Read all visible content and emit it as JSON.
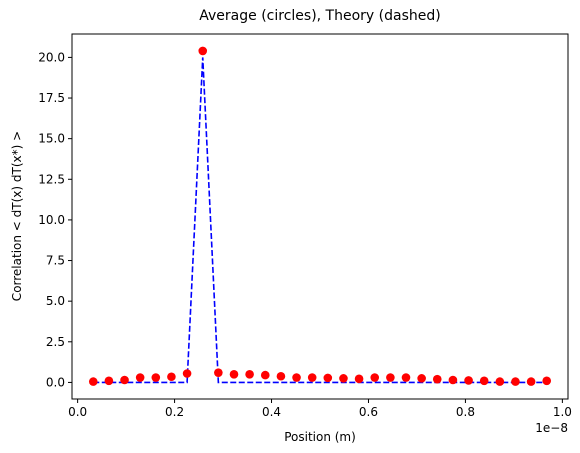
{
  "chart_data": {
    "type": "scatter",
    "title": "Average (circles), Theory (dashed)",
    "xlabel": "Position (m)",
    "ylabel": "Correlation < dT(x) dT(x*) >",
    "x_offset_text": "1e−8",
    "x_scale_exponent": -8,
    "xlim": [
      -0.0116,
      1.0116
    ],
    "ylim": [
      -1.02,
      21.44
    ],
    "x_ticks": [
      0.0,
      0.2,
      0.4,
      0.6,
      0.8,
      1.0
    ],
    "x_tick_labels": [
      "0.0",
      "0.2",
      "0.4",
      "0.6",
      "0.8",
      "1.0"
    ],
    "y_ticks": [
      0.0,
      2.5,
      5.0,
      7.5,
      10.0,
      12.5,
      15.0,
      17.5,
      20.0
    ],
    "y_tick_labels": [
      "0.0",
      "2.5",
      "5.0",
      "7.5",
      "10.0",
      "12.5",
      "15.0",
      "17.5",
      "20.0"
    ],
    "grid": false,
    "series": [
      {
        "style": "markers",
        "marker": "circle",
        "color": "#ff0000",
        "x": [
          0.0323,
          0.0645,
          0.0968,
          0.129,
          0.1613,
          0.1935,
          0.2258,
          0.2581,
          0.2903,
          0.3226,
          0.3548,
          0.3871,
          0.4194,
          0.4516,
          0.4839,
          0.5161,
          0.5484,
          0.5806,
          0.6129,
          0.6452,
          0.6774,
          0.7097,
          0.7419,
          0.7742,
          0.8065,
          0.8387,
          0.871,
          0.9032,
          0.9355,
          0.9677
        ],
        "y": [
          0.05,
          0.1,
          0.15,
          0.3,
          0.3,
          0.35,
          0.55,
          20.4,
          0.6,
          0.5,
          0.5,
          0.45,
          0.38,
          0.3,
          0.3,
          0.28,
          0.25,
          0.22,
          0.3,
          0.3,
          0.3,
          0.25,
          0.2,
          0.15,
          0.12,
          0.1,
          0.05,
          0.05,
          0.05,
          0.1
        ]
      },
      {
        "style": "dashed-line",
        "color": "#0000ff",
        "x": [
          0.0323,
          0.0645,
          0.0968,
          0.129,
          0.1613,
          0.1935,
          0.2258,
          0.2581,
          0.2903,
          0.3226,
          0.3548,
          0.3871,
          0.4194,
          0.4516,
          0.4839,
          0.5161,
          0.5484,
          0.5806,
          0.6129,
          0.6452,
          0.6774,
          0.7097,
          0.7419,
          0.7742,
          0.8065,
          0.8387,
          0.871,
          0.9032,
          0.9355,
          0.9677
        ],
        "y": [
          0,
          0,
          0,
          0,
          0,
          0,
          0,
          20.0,
          0,
          0,
          0,
          0,
          0,
          0,
          0,
          0,
          0,
          0,
          0,
          0,
          0,
          0,
          0,
          0,
          0,
          0,
          0,
          0,
          0,
          0
        ]
      }
    ]
  }
}
